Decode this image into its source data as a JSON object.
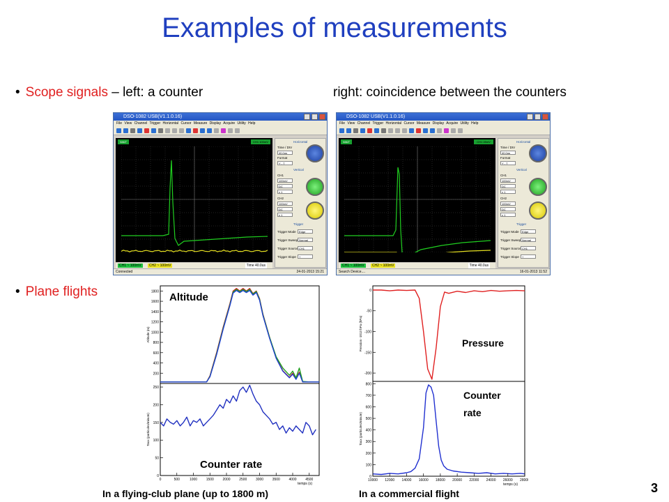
{
  "slide": {
    "title": "Examples of measurements",
    "bullet1_red": "Scope signals",
    "bullet1_rest": " – left: a counter",
    "bullet1_right": "right: coincidence between the counters",
    "bullet2_red": "Plane flights",
    "page_number": "3"
  },
  "scope_left": {
    "window_title": "DSO-1082 USB(V1.1.0.16)",
    "menu": "File View Channel Trigger Horizontal Cursor Measure Display Acquire Utility Help",
    "run_state": "WAIT",
    "ch1_tag": "CH1 100mV",
    "panel": {
      "horizontal": "Horizontal",
      "time_div_label": "Time / DIV",
      "time_div": "40.0us",
      "format_label": "Format",
      "format": "Y - T",
      "vertical": "Vertical",
      "ch1": "CH1",
      "ch1_volts": "100mV",
      "ch1_coupling": "DC",
      "ch1_probe": "x 1",
      "ch2": "CH2",
      "ch2_volts": "100mV",
      "ch2_coupling": "DC",
      "ch2_probe": "x 1",
      "trigger": "Trigger",
      "mode_label": "Trigger Mode",
      "mode": "Edge",
      "sweep_label": "Trigger Sweep",
      "sweep": "Normal",
      "source_label": "Trigger Source",
      "source": "CH1",
      "slope_label": "Trigger Slope",
      "slope": "+"
    },
    "status_ch1": "CH1 ~ 100mV",
    "status_ch2": "CH2 ~ 100mV",
    "status_time": "Time  40.0us",
    "connection": "Connected",
    "datetime": "24-01-2013 15:21"
  },
  "scope_right": {
    "window_title": "DSO-1082 USB(V1.1.0.16)",
    "menu": "File View Channel Trigger Horizontal Cursor Measure Display Acquire Utility Help",
    "run_state": "WAIT",
    "ch1_tag": "CH1 28mV",
    "panel": {
      "horizontal": "Horizontal",
      "time_div_label": "Time / DIV",
      "time_div": "40.0us",
      "format_label": "Format",
      "format": "Y - T",
      "vertical": "Vertical",
      "ch1": "CH1",
      "ch1_volts": "100mV",
      "ch1_coupling": "DC",
      "ch1_probe": "x 1",
      "ch2": "CH2",
      "ch2_volts": "100mV",
      "ch2_coupling": "DC",
      "ch2_probe": "x 1",
      "trigger": "Trigger",
      "mode_label": "Trigger Mode",
      "mode": "Edge",
      "sweep_label": "Trigger Sweep",
      "sweep": "Normal",
      "source_label": "Trigger Source",
      "source": "CH1",
      "slope_label": "Trigger Slope",
      "slope": "+"
    },
    "status_ch1": "CH1 ~ 100mV",
    "status_ch2": "CH2 ~ 100mV",
    "status_time": "Time  40.0us",
    "connection": "Search Device....",
    "datetime": "16-01-2013 11:52"
  },
  "flight_left": {
    "label_top": "Altitude",
    "label_bottom": "Counter rate",
    "caption": "In a flying-club plane (up to 1800 m)",
    "ylabel_top": "Altitude (m)",
    "ylabel_bottom": "Taux (particules/minute)",
    "xlabel": "temps (s)"
  },
  "flight_right": {
    "label_top": "Pressure",
    "label_bottom_1": "Counter",
    "label_bottom_2": "rate",
    "caption": "In a commercial flight",
    "ylabel_top": "Pression -1013 hPa (hPa)",
    "ylabel_bottom": "Taux (particules/minute)",
    "xlabel": "temps (s)"
  },
  "chart_data": [
    {
      "type": "line",
      "title": "",
      "xlabel": "temps (s)",
      "ylabel": "Altitude (m)",
      "xlim": [
        0,
        4800
      ],
      "ylim": [
        0,
        1900
      ],
      "x_ticks": [
        0,
        500,
        1000,
        1500,
        2000,
        2500,
        3000,
        3500,
        4000,
        4500
      ],
      "y_ticks": [
        200,
        400,
        600,
        800,
        1000,
        1200,
        1400,
        1600,
        1800
      ],
      "series": [
        {
          "color": "#d02020",
          "x": [
            0,
            1400,
            1500,
            1700,
            1900,
            2100,
            2200,
            2300,
            2400,
            2500,
            2600,
            2700,
            2800,
            2900,
            3000,
            3100,
            3300,
            3500,
            3700,
            3900,
            4000,
            4100,
            4200,
            4300,
            4500,
            4800
          ],
          "y": [
            30,
            30,
            150,
            600,
            1100,
            1550,
            1800,
            1850,
            1800,
            1850,
            1800,
            1850,
            1750,
            1800,
            1650,
            1350,
            900,
            500,
            250,
            120,
            200,
            90,
            220,
            30,
            30,
            30
          ]
        },
        {
          "color": "#20a020",
          "x": [
            0,
            1400,
            1500,
            1700,
            1900,
            2100,
            2200,
            2300,
            2400,
            2500,
            2600,
            2700,
            2800,
            2900,
            3000,
            3100,
            3300,
            3500,
            3700,
            3900,
            4000,
            4100,
            4200,
            4300,
            4500,
            4800
          ],
          "y": [
            30,
            30,
            140,
            580,
            1080,
            1530,
            1780,
            1830,
            1790,
            1830,
            1790,
            1830,
            1740,
            1790,
            1640,
            1340,
            900,
            520,
            300,
            160,
            240,
            110,
            300,
            40,
            30,
            30
          ]
        },
        {
          "color": "#2040d0",
          "x": [
            0,
            1400,
            1500,
            1700,
            1900,
            2100,
            2200,
            2300,
            2400,
            2500,
            2600,
            2700,
            2800,
            2900,
            3000,
            3100,
            3300,
            3500,
            3700,
            3900,
            4000,
            4100,
            4200,
            4300,
            4500,
            4800
          ],
          "y": [
            30,
            30,
            130,
            560,
            1060,
            1510,
            1760,
            1810,
            1770,
            1810,
            1770,
            1810,
            1720,
            1770,
            1620,
            1320,
            880,
            490,
            240,
            110,
            180,
            80,
            200,
            30,
            30,
            30
          ]
        }
      ]
    },
    {
      "type": "line",
      "title": "",
      "xlabel": "temps (s)",
      "ylabel": "Taux (particules/minute)",
      "xlim": [
        0,
        4800
      ],
      "ylim": [
        0,
        260
      ],
      "x_ticks": [
        0,
        500,
        1000,
        1500,
        2000,
        2500,
        3000,
        3500,
        4000,
        4500
      ],
      "y_ticks": [
        0,
        50,
        100,
        150,
        200,
        250
      ],
      "series": [
        {
          "color": "#2030c0",
          "x": [
            0,
            100,
            200,
            300,
            400,
            500,
            600,
            700,
            800,
            900,
            1000,
            1100,
            1200,
            1300,
            1400,
            1500,
            1600,
            1700,
            1800,
            1900,
            2000,
            2100,
            2200,
            2300,
            2400,
            2500,
            2600,
            2700,
            2800,
            2900,
            3000,
            3100,
            3200,
            3300,
            3400,
            3500,
            3600,
            3700,
            3800,
            3900,
            4000,
            4100,
            4200,
            4300,
            4400,
            4500,
            4600,
            4700
          ],
          "y": [
            150,
            140,
            160,
            150,
            145,
            155,
            140,
            150,
            165,
            140,
            155,
            150,
            160,
            140,
            150,
            160,
            170,
            185,
            200,
            190,
            215,
            205,
            225,
            210,
            240,
            250,
            235,
            255,
            230,
            210,
            200,
            180,
            170,
            160,
            145,
            150,
            130,
            140,
            120,
            135,
            125,
            140,
            130,
            120,
            150,
            140,
            115,
            130
          ]
        }
      ]
    },
    {
      "type": "line",
      "title": "",
      "xlabel": "temps (s)",
      "ylabel": "Pression -1013 hPa (hPa)",
      "xlim": [
        10000,
        28000
      ],
      "ylim": [
        -220,
        10
      ],
      "x_ticks": [
        10000,
        12000,
        14000,
        16000,
        18000,
        20000,
        22000,
        24000,
        26000,
        28000
      ],
      "y_ticks": [
        0,
        -50,
        -100,
        -150,
        -200
      ],
      "series": [
        {
          "color": "#e02020",
          "x": [
            10000,
            11000,
            12000,
            13000,
            14000,
            15000,
            15500,
            16000,
            16500,
            17000,
            17500,
            18000,
            18500,
            19000,
            20000,
            21000,
            22000,
            23000,
            24000,
            25000,
            26000,
            27000,
            28000
          ],
          "y": [
            0,
            0,
            -2,
            0,
            -1,
            0,
            -20,
            -100,
            -190,
            -215,
            -140,
            -40,
            -5,
            -8,
            -3,
            -6,
            -2,
            -4,
            -1,
            -3,
            -2,
            -1,
            -2
          ]
        }
      ]
    },
    {
      "type": "line",
      "title": "",
      "xlabel": "temps (s)",
      "ylabel": "Taux (particules/minute)",
      "xlim": [
        10000,
        28000
      ],
      "ylim": [
        0,
        820
      ],
      "x_ticks": [
        10000,
        12000,
        14000,
        16000,
        18000,
        20000,
        22000,
        24000,
        26000,
        28000
      ],
      "y_ticks": [
        0,
        100,
        200,
        300,
        400,
        500,
        600,
        700,
        800
      ],
      "series": [
        {
          "color": "#2030d0",
          "x": [
            10000,
            11000,
            12000,
            13000,
            14000,
            14500,
            15000,
            15500,
            16000,
            16300,
            16600,
            16900,
            17200,
            17500,
            17800,
            18100,
            18400,
            18800,
            19500,
            20500,
            21500,
            22500,
            23500,
            24500,
            25500,
            26500,
            27500,
            28000
          ],
          "y": [
            20,
            15,
            25,
            20,
            30,
            40,
            70,
            150,
            420,
            720,
            790,
            770,
            700,
            480,
            260,
            140,
            90,
            60,
            45,
            35,
            30,
            25,
            30,
            20,
            25,
            20,
            25,
            20
          ]
        }
      ]
    }
  ]
}
